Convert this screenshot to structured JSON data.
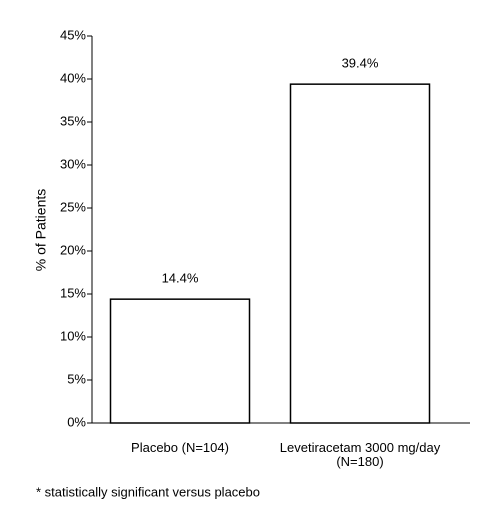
{
  "chart_data": {
    "type": "bar",
    "y_label": "% of Patients",
    "categories": [
      "Placebo (N=104)",
      "Levetiracetam 3000 mg/day\n(N=180)"
    ],
    "values": [
      14.4,
      39.4
    ],
    "value_labels": [
      "14.4%",
      "39.4%"
    ],
    "color": "#ffffff",
    "edge_color": "#000000",
    "ylim": [
      0,
      45
    ],
    "yticks": [
      {
        "value": 0,
        "label": "0%"
      },
      {
        "value": 5,
        "label": "5%"
      },
      {
        "value": 10,
        "label": "10%"
      },
      {
        "value": 15,
        "label": "15%"
      },
      {
        "value": 20,
        "label": "20%"
      },
      {
        "value": 25,
        "label": "25%"
      },
      {
        "value": 30,
        "label": "30%"
      },
      {
        "value": 35,
        "label": "35%"
      },
      {
        "value": 40,
        "label": "40%"
      },
      {
        "value": 45,
        "label": "45%"
      }
    ],
    "annotation": "*",
    "footnote": "* statistically significant versus placebo",
    "grid": false
  }
}
